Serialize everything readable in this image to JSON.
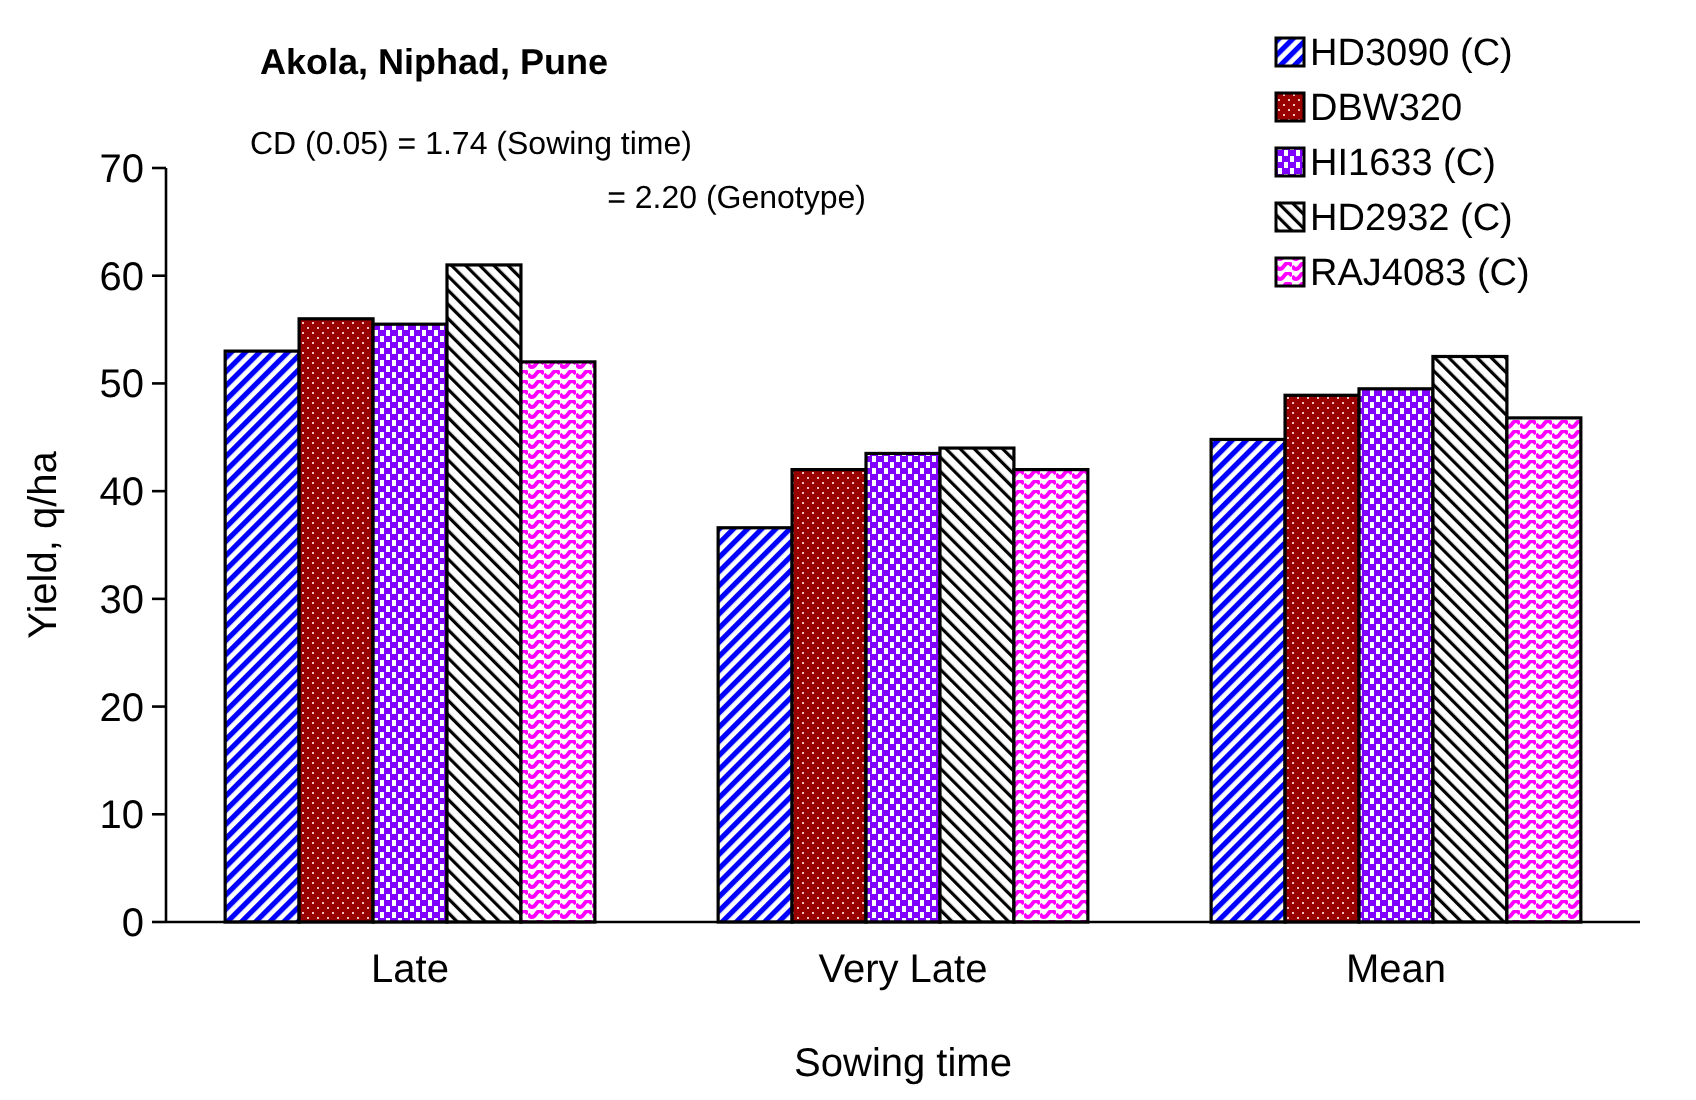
{
  "chart_data": {
    "type": "bar",
    "title": "Akola, Niphad, Pune",
    "xlabel": "Sowing time",
    "ylabel": "Yield, q/ha",
    "annotations": [
      "CD (0.05) = 1.74 (Sowing time)",
      "= 2.20 (Genotype)"
    ],
    "categories": [
      "Late",
      "Very Late",
      "Mean"
    ],
    "series": [
      {
        "name": "HD3090 (C)",
        "color": "#0000ff",
        "values": [
          53,
          36.6,
          44.8
        ]
      },
      {
        "name": "DBW320",
        "color": "#990000",
        "values": [
          56,
          42,
          48.9
        ]
      },
      {
        "name": "HI1633 (C)",
        "color": "#7f00ff",
        "values": [
          55.5,
          43.5,
          49.5
        ]
      },
      {
        "name": "HD2932 (C)",
        "color": "#000000",
        "values": [
          61,
          44,
          52.5
        ]
      },
      {
        "name": "RAJ4083 (C)",
        "color": "#ff00ff",
        "values": [
          52,
          42,
          46.8
        ]
      }
    ],
    "ylim": [
      0,
      70
    ],
    "yticks": [
      0,
      10,
      20,
      30,
      40,
      50,
      60,
      70
    ],
    "grid": false,
    "legend": "top right"
  }
}
